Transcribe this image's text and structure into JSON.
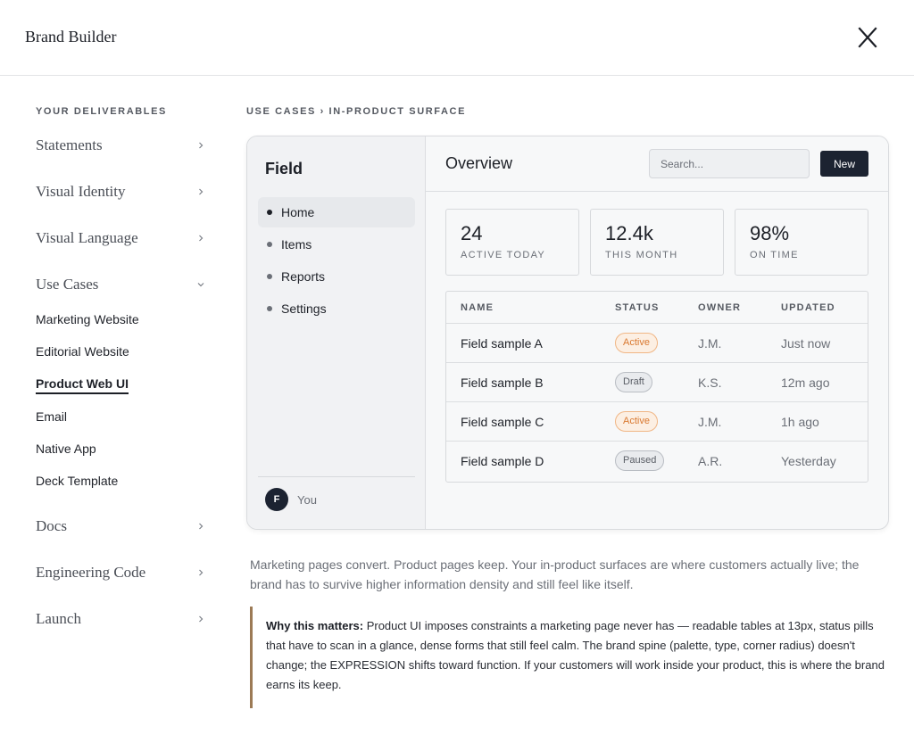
{
  "app": {
    "title": "Brand Builder"
  },
  "sidebar": {
    "heading": "YOUR DELIVERABLES",
    "sections": [
      {
        "label": "Statements",
        "state": "collapsed"
      },
      {
        "label": "Visual Identity",
        "state": "collapsed"
      },
      {
        "label": "Visual Language",
        "state": "collapsed"
      },
      {
        "label": "Use Cases",
        "state": "expanded"
      },
      {
        "label": "Docs",
        "state": "collapsed"
      },
      {
        "label": "Engineering Code",
        "state": "collapsed"
      },
      {
        "label": "Launch",
        "state": "collapsed"
      }
    ],
    "use_case_items": [
      {
        "label": "Marketing Website",
        "active": false
      },
      {
        "label": "Editorial Website",
        "active": false
      },
      {
        "label": "Product Web UI",
        "active": true
      },
      {
        "label": "Email",
        "active": false
      },
      {
        "label": "Native App",
        "active": false
      },
      {
        "label": "Deck Template",
        "active": false
      }
    ]
  },
  "main": {
    "breadcrumb": "USE CASES › IN-PRODUCT SURFACE",
    "mock": {
      "brand": "Field",
      "nav": [
        {
          "label": "Home",
          "active": true
        },
        {
          "label": "Items",
          "active": false
        },
        {
          "label": "Reports",
          "active": false
        },
        {
          "label": "Settings",
          "active": false
        }
      ],
      "user": {
        "initial": "F",
        "name": "You"
      },
      "title": "Overview",
      "search_placeholder": "Search...",
      "new_label": "New",
      "stats": [
        {
          "value": "24",
          "label": "ACTIVE TODAY"
        },
        {
          "value": "12.4k",
          "label": "THIS MONTH"
        },
        {
          "value": "98%",
          "label": "ON TIME"
        }
      ],
      "table": {
        "columns": [
          "NAME",
          "STATUS",
          "OWNER",
          "UPDATED"
        ],
        "rows": [
          {
            "name": "Field sample A",
            "status": "Active",
            "status_kind": "active",
            "owner": "J.M.",
            "updated": "Just now"
          },
          {
            "name": "Field sample B",
            "status": "Draft",
            "status_kind": "draft",
            "owner": "K.S.",
            "updated": "12m ago"
          },
          {
            "name": "Field sample C",
            "status": "Active",
            "status_kind": "active",
            "owner": "J.M.",
            "updated": "1h ago"
          },
          {
            "name": "Field sample D",
            "status": "Paused",
            "status_kind": "paused",
            "owner": "A.R.",
            "updated": "Yesterday"
          }
        ]
      }
    },
    "intro": "Marketing pages convert. Product pages keep. Your in-product surfaces are where customers actually live; the brand has to survive higher information density and still feel like itself.",
    "callout": {
      "lead": "Why this matters:",
      "body": " Product UI imposes constraints a marketing page never has — readable tables at 13px, status pills that have to scan in a glance, dense forms that still feel calm. The brand spine (palette, type, corner radius) doesn't change; the EXPRESSION shifts toward function. If your customers will work inside your product, this is where the brand earns its keep."
    }
  },
  "colors": {
    "accent_dark": "#1c2331",
    "active_pill": "#d9782f",
    "callout_rule": "#9c7a55"
  },
  "icons": {
    "close": "close-icon",
    "chevron_right": "chevron-right-icon",
    "chevron_down": "chevron-down-icon"
  }
}
